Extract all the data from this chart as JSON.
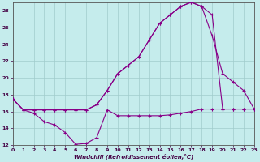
{
  "xlabel": "Windchill (Refroidissement éolien,°C)",
  "bg_color": "#c5ecec",
  "grid_color": "#a0cccc",
  "line_color": "#880088",
  "xlim": [
    0,
    23
  ],
  "ylim": [
    12,
    29
  ],
  "yticks": [
    12,
    14,
    16,
    18,
    20,
    22,
    24,
    26,
    28
  ],
  "xticks": [
    0,
    1,
    2,
    3,
    4,
    5,
    6,
    7,
    8,
    9,
    10,
    11,
    12,
    13,
    14,
    15,
    16,
    17,
    18,
    19,
    20,
    21,
    22,
    23
  ],
  "line1_x": [
    0,
    1,
    2,
    3,
    4,
    5,
    6,
    7,
    8,
    9,
    10,
    11,
    12,
    13,
    14,
    15,
    16,
    17,
    18,
    19,
    20,
    21,
    22,
    23
  ],
  "line1_y": [
    17.5,
    16.2,
    15.8,
    14.8,
    14.4,
    13.5,
    12.1,
    12.2,
    12.9,
    16.2,
    15.5,
    15.5,
    15.5,
    15.5,
    15.5,
    15.6,
    15.8,
    16.0,
    16.3,
    16.3,
    16.3,
    16.3,
    16.3,
    16.3
  ],
  "line2_x": [
    0,
    1,
    2,
    3,
    4,
    5,
    6,
    7,
    8,
    9,
    10,
    11,
    12,
    13,
    14,
    15,
    16,
    17,
    18,
    19,
    20,
    21,
    22,
    23
  ],
  "line2_y": [
    17.5,
    16.2,
    16.2,
    16.2,
    16.2,
    16.2,
    16.2,
    16.2,
    16.8,
    18.5,
    20.5,
    21.5,
    22.5,
    24.5,
    26.5,
    27.5,
    28.5,
    29.0,
    28.5,
    25.0,
    20.5,
    19.5,
    18.5,
    16.3
  ],
  "line3_x": [
    0,
    1,
    2,
    3,
    4,
    5,
    6,
    7,
    8,
    9,
    10,
    11,
    12,
    13,
    14,
    15,
    16,
    17,
    18,
    19,
    20,
    21,
    22,
    23
  ],
  "line3_y": [
    17.5,
    16.2,
    16.2,
    16.2,
    16.2,
    16.2,
    16.2,
    16.2,
    16.8,
    18.5,
    20.5,
    21.5,
    22.5,
    24.5,
    26.5,
    27.5,
    28.5,
    29.0,
    28.5,
    27.5,
    16.3,
    16.3,
    16.3,
    16.3
  ]
}
